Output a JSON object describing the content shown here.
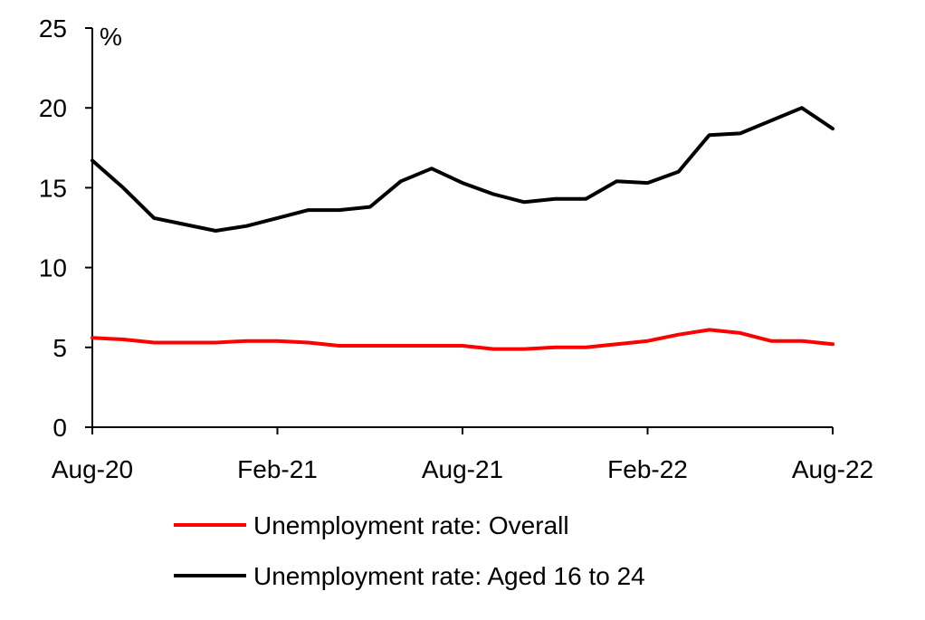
{
  "chart_data": {
    "type": "line",
    "unit_label": "%",
    "ylim": [
      0,
      25
    ],
    "yticks": [
      "0",
      "5",
      "10",
      "15",
      "20",
      "25"
    ],
    "x_tick_labels": [
      "Aug-20",
      "Feb-21",
      "Aug-21",
      "Feb-22",
      "Aug-22"
    ],
    "x_tick_indices": [
      0,
      6,
      12,
      18,
      24
    ],
    "x": [
      "Aug-20",
      "Sep-20",
      "Oct-20",
      "Nov-20",
      "Dec-20",
      "Jan-21",
      "Feb-21",
      "Mar-21",
      "Apr-21",
      "May-21",
      "Jun-21",
      "Jul-21",
      "Aug-21",
      "Sep-21",
      "Oct-21",
      "Nov-21",
      "Dec-21",
      "Jan-22",
      "Feb-22",
      "Mar-22",
      "Apr-22",
      "May-22",
      "Jun-22",
      "Jul-22",
      "Aug-22"
    ],
    "series": [
      {
        "name": "Unemployment rate: Overall",
        "color": "#ff0000",
        "values": [
          5.6,
          5.5,
          5.3,
          5.3,
          5.3,
          5.4,
          5.4,
          5.3,
          5.1,
          5.1,
          5.1,
          5.1,
          5.1,
          4.9,
          4.9,
          5.0,
          5.0,
          5.2,
          5.4,
          5.8,
          6.1,
          5.9,
          5.4,
          5.4,
          5.2
        ]
      },
      {
        "name": "Unemployment rate: Aged 16 to 24",
        "color": "#000000",
        "values": [
          16.7,
          15.0,
          13.1,
          12.7,
          12.3,
          12.6,
          13.1,
          13.6,
          13.6,
          13.8,
          15.4,
          16.2,
          15.3,
          14.6,
          14.1,
          14.3,
          14.3,
          15.4,
          15.3,
          16.0,
          18.3,
          18.4,
          19.2,
          20.0,
          18.7
        ]
      }
    ],
    "legend_position": "bottom"
  }
}
